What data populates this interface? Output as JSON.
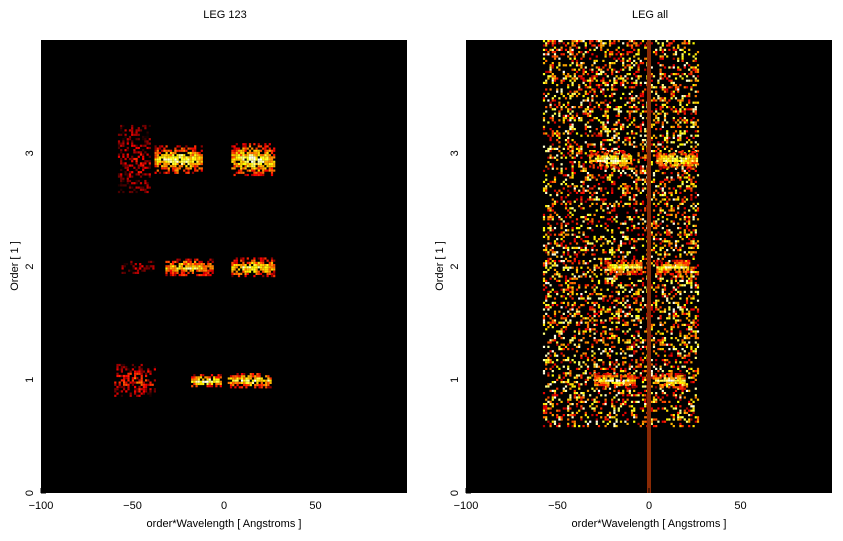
{
  "chart_data": [
    {
      "type": "heatmap",
      "title": "LEG 123",
      "xlabel": "order*Wavelength [ Angstroms ]",
      "ylabel": "Order [ 1 ]",
      "xlim": [
        -100,
        100
      ],
      "ylim": [
        0,
        4
      ],
      "x_ticks": [
        -100,
        -50,
        0,
        50
      ],
      "y_ticks": [
        0,
        1,
        2,
        3
      ],
      "colormap": "hot",
      "background": "#000000",
      "blobs": [
        {
          "x": [
            -60,
            -38
          ],
          "y": 1.0,
          "half_height": 0.14,
          "intensity": 0.45
        },
        {
          "x": [
            -18,
            -2
          ],
          "y": 1.0,
          "half_height": 0.05,
          "intensity": 1.0
        },
        {
          "x": [
            2,
            26
          ],
          "y": 1.0,
          "half_height": 0.06,
          "intensity": 0.95
        },
        {
          "x": [
            -56,
            -38
          ],
          "y": 2.0,
          "half_height": 0.05,
          "intensity": 0.25
        },
        {
          "x": [
            -32,
            -6
          ],
          "y": 2.0,
          "half_height": 0.07,
          "intensity": 0.85
        },
        {
          "x": [
            4,
            27
          ],
          "y": 2.0,
          "half_height": 0.08,
          "intensity": 0.9
        },
        {
          "x": [
            -58,
            -40
          ],
          "y": 2.95,
          "half_height": 0.3,
          "intensity": 0.35
        },
        {
          "x": [
            -38,
            -12
          ],
          "y": 2.95,
          "half_height": 0.12,
          "intensity": 0.95
        },
        {
          "x": [
            4,
            27
          ],
          "y": 2.95,
          "half_height": 0.14,
          "intensity": 0.95
        }
      ]
    },
    {
      "type": "heatmap",
      "title": "LEG all",
      "xlabel": "order*Wavelength [ Angstroms ]",
      "ylabel": "Order [ 1 ]",
      "xlim": [
        -100,
        100
      ],
      "ylim": [
        0,
        4
      ],
      "x_ticks": [
        -100,
        -50,
        0,
        50
      ],
      "y_ticks": [
        0,
        1,
        2,
        3
      ],
      "colormap": "hot",
      "background": "#000000",
      "noise_region": {
        "x": [
          -58,
          27
        ],
        "y": [
          0.6,
          4
        ]
      },
      "blobs": [
        {
          "x": [
            -30,
            -8
          ],
          "y": 1.0,
          "half_height": 0.06,
          "intensity": 1.0
        },
        {
          "x": [
            2,
            20
          ],
          "y": 1.0,
          "half_height": 0.06,
          "intensity": 1.0
        },
        {
          "x": [
            -24,
            -4
          ],
          "y": 2.0,
          "half_height": 0.06,
          "intensity": 0.95
        },
        {
          "x": [
            4,
            22
          ],
          "y": 2.0,
          "half_height": 0.06,
          "intensity": 0.95
        },
        {
          "x": [
            -32,
            -10
          ],
          "y": 2.95,
          "half_height": 0.07,
          "intensity": 1.0
        },
        {
          "x": [
            4,
            26
          ],
          "y": 2.95,
          "half_height": 0.07,
          "intensity": 1.0
        }
      ],
      "zero_order_line": {
        "x": 0,
        "y": [
          0,
          4
        ]
      }
    }
  ]
}
